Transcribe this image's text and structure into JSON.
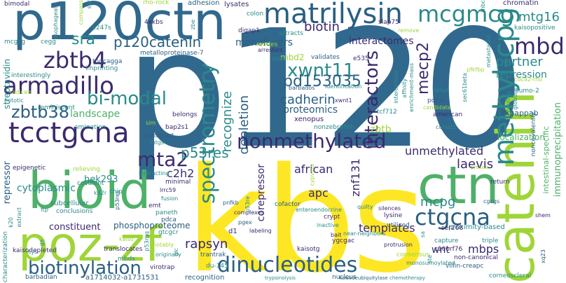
{
  "palette": {
    "background": "#ffffff",
    "navy": "#3b2a6e",
    "blue": "#31698e",
    "teal": "#2a8a8a",
    "green": "#4fb06a",
    "lime": "#9fd538",
    "yellow": "#fde725"
  },
  "words": {
    "p120": "p120",
    "kbs": "kbs",
    "p120ctn": "p120ctn",
    "catenin": "catenin",
    "ctn": "ctn",
    "poz_zf": "poz-zf",
    "bioid": "bioid",
    "matrilysin": "matrilysin",
    "mcgmcg": "mcgmcg",
    "methyl_cpg": "methyl-cpg",
    "mbd": "mbd",
    "zbtb4": "zbtb4",
    "armadillo": "armadillo",
    "tcctgcna": "tcctgcna",
    "nonmethylated": "nonmethylated",
    "dinucleotides": "dinucleotides",
    "biotinylation": "biotinylation",
    "ctgcna": "ctgcna",
    "spectrometry": "spectrometry",
    "interactors": "interactors",
    "p120catenin": "p120catenin",
    "xwnt11": "xwnt11",
    "pd153035": "pd153035",
    "cadherin": "cadherin",
    "zbtb38": "zbtb38",
    "bi_modal": "bi-modal",
    "mta2": "mta2",
    "p53res": "p53res",
    "mecp2": "mecp2",
    "partner": "partner",
    "repression": "repression",
    "mtg16": "mtg16",
    "unmethylated": "unmethylated",
    "laevis": "laevis",
    "mcpg": "mcpg",
    "mbps": "mbps",
    "wnt": "wnt",
    "rapsyn": "rapsyn",
    "apc": "apc",
    "corepressor": "corepressor",
    "znf131": "znf131",
    "african": "african",
    "templates": "templates",
    "recognize": "recognize",
    "depletion": "depletion",
    "proteomics": "proteomics",
    "xenopus": "xenopus",
    "biotin": "biotin",
    "interactomes": "interactomes",
    "monolayers": "monolayers",
    "sra": "sra",
    "landscape": "landscape",
    "repressor": "repressor",
    "cytoplasmic": "cytoplasmic",
    "hek293": "hek293",
    "c2h2": "c2h2",
    "constituent": "constituent",
    "phosphoproteome": "phosphoproteome",
    "zbtb": "zbtb",
    "mbd2": "mbd2",
    "streptavidin": "streptavidin",
    "proximity_based": "proximity-based",
    "localization": "localization",
    "pfkfbp": "pfkfbp",
    "immunoprecipitation": "immunoprecipitation",
    "intestinal_specific": "intestinal-specific",
    "chromatin": "chromatin",
    "kaisopositive": "kaisopositive",
    "bimodal": "bimodal",
    "cegg": "cegg",
    "mcgcg": "mcgcg",
    "adhesion": "adhesion",
    "lysates": "lysates",
    "rho_rock": "rho-rock",
    "compass": "compass",
    "sur": "sur",
    "metalloproteinase_7": "metalloproteinase-7",
    "tngcagga": "tngcagga",
    "imprinting": "imprinting",
    "interestingly": "interestingly",
    "radicals": "radicals",
    "mitotic": "mitotic",
    "reminiscent": "reminiscent",
    "amination": "amination",
    "epigenetic": "epigenetic",
    "relieving": "relieving",
    "covalent": "covalent",
    "subcellular": "subcellular",
    "conclusions": "conclusions",
    "kaisodepleted": "kaisodepleted",
    "characterization": "characterization",
    "barbadian": "barbadian",
    "a1714032_a1731531": "a1714032-a1731531",
    "du_145": "du-145",
    "trantrak": "trantrak",
    "recognition": "recognition",
    "virotrap": "virotrap",
    "gtcgcr": "gtcgcr",
    "p53rqq": "p53rqq",
    "mbds": "mbds",
    "nucleus": "nucleus",
    "ygcgac": "ygcgac",
    "kaisotg": "kaisotg",
    "capture": "capture",
    "c10orf76": "c10orf76",
    "triple": "triple",
    "non_canonical": "non-canonical",
    "villin_creapc": "villin-creapc",
    "corneoscleral": "corneoscleral",
    "consensus": "consensus",
    "protrusion": "protrusion",
    "monosumoylated": "monosumoylated",
    "lysine": "lysine",
    "utilized": "utilized",
    "ser268": "ser268",
    "crypt": "crypt",
    "inactive": "inactive",
    "bait": "bait",
    "silences": "silences",
    "quilty": "quilty",
    "labeling": "labeling",
    "d1": "d1",
    "pgex": "pgex",
    "complexes": "complexes",
    "pnfkb": "pnfkb",
    "cofactor": "cofactor",
    "enteroendocrine": "enteroendocrine",
    "nonzebrafish": "nonzebrafish",
    "tcf712": "tcf712",
    "corest1": "corest1",
    "american": "american",
    "pdcas": "pdcas",
    "candidate": "candidate",
    "relief": "relief",
    "sec61beta": "sec61beta",
    "pfkpappab": "pfkpappab",
    "noncovalently": "noncovalently",
    "return": "return",
    "cgcgs": "cgcgs",
    "shem": "shem",
    "xq23": "xq23",
    "paneth": "paneth",
    "pdca": "pdca",
    "emt": "emt",
    "fusion": "fusion",
    "minimal": "minimal",
    "lrrc59": "lrrc59",
    "k42r": "k42r",
    "chip": "chip",
    "p53res_small": "p53res",
    "construct": "construct",
    "mtgs": "mtgs",
    "bap2s1": "bap2s1",
    "belongs": "belongs",
    "sim": "sim",
    "arrestors": "arrestors",
    "digap1": "digap1",
    "colon": "colon",
    "attracts": "attracts",
    "modes": "modes",
    "validates": "validates",
    "e535": "e535",
    "cpgs": "cpgs",
    "xwnt1": "xwnt1",
    "barbados": "barbados",
    "identification": "identification",
    "remove": "remove",
    "slap75": "slap75",
    "metastases": "metastases",
    "tnbc": "tnbc",
    "4xkbs": "4xkbs",
    "zbe": "zbe",
    "c247s": "c247s",
    "esophageal": "esophageal",
    "trypsinolysis": "trypsinolysis",
    "kaisodeubiquitylase": "kaisodeubiquitylase",
    "chemotherapy": "chemotherapy",
    "sumo_2": "sumo-2",
    "cdc42_rho": "cdc42-rho",
    "globular": "globular",
    "hunting": "hunting",
    "precise": "precise",
    "enrichment_mass": "enrichment-mass",
    "affinity": "affinity",
    "intercellular": "intercellular",
    "cys": "cys",
    "translocates": "translocates",
    "kaiso": "kaiso",
    "originally": "originally",
    "notably": "notably",
    "interacting": "interacting",
    "ftp": "ftp",
    "k20": "k20",
    "near_neighbors": "near-neighbors",
    "extract": "extract",
    "glc": "glc",
    "gs": "gs",
    "sa": "sa",
    "ste": "ste",
    "p53re": "p53re",
    "cypvma": "cypvma"
  }
}
